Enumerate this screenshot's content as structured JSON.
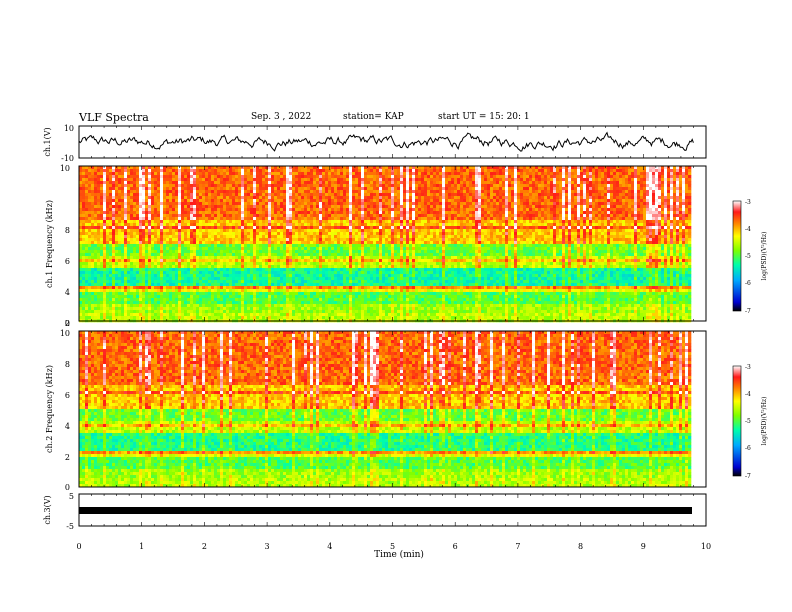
{
  "header": {
    "title": "VLF Spectra",
    "date": "Sep. 3 , 2022",
    "station": "station= KAP",
    "start": "start UT = 15: 20: 1"
  },
  "chart_data": [
    {
      "type": "line",
      "name": "ch1-waveform",
      "ylabel": "ch.1(V)",
      "ylim": [
        -10,
        10
      ],
      "ytick_labels": [
        "10",
        "-10"
      ],
      "xlim": [
        0,
        10
      ],
      "note_values": "noisy waveform fluctuating roughly between -7 and 7 V over 0-9.8 min"
    },
    {
      "type": "heatmap",
      "name": "ch1-spectrogram",
      "ylabel": "ch.1 Frequency (kHz)",
      "ylim": [
        0,
        10
      ],
      "ytick_labels": [
        "0",
        "2",
        "4",
        "6",
        "8",
        "10"
      ],
      "xlim": [
        0,
        9.8
      ],
      "colorbar": {
        "label": "log(PSD)(V²/Hz)",
        "range": [
          -7,
          -3
        ],
        "tick_labels": [
          "-3",
          "-4",
          "-5",
          "-6",
          "-7"
        ]
      }
    },
    {
      "type": "heatmap",
      "name": "ch2-spectrogram",
      "ylabel": "ch.2 Frequency (kHz)",
      "ylim": [
        0,
        10
      ],
      "ytick_labels": [
        "0",
        "2",
        "4",
        "6",
        "8",
        "10"
      ],
      "xlim": [
        0,
        9.8
      ],
      "colorbar": {
        "label": "log(PSD)(V²/Hz)",
        "range": [
          -7,
          -3
        ],
        "tick_labels": [
          "-3",
          "-4",
          "-5",
          "-6",
          "-7"
        ]
      }
    },
    {
      "type": "line",
      "name": "ch3-waveform",
      "ylabel": "ch.3(V)",
      "ylim": [
        -5,
        5
      ],
      "ytick_labels": [
        "5",
        "-5"
      ],
      "xlim": [
        0,
        10
      ],
      "note_values": "nearly constant thick trace at about -1 V"
    }
  ],
  "xaxis": {
    "label": "Time (min)",
    "tick_labels": [
      "0",
      "1",
      "2",
      "3",
      "4",
      "5",
      "6",
      "7",
      "8",
      "9",
      "10"
    ],
    "range": [
      0,
      10
    ]
  }
}
